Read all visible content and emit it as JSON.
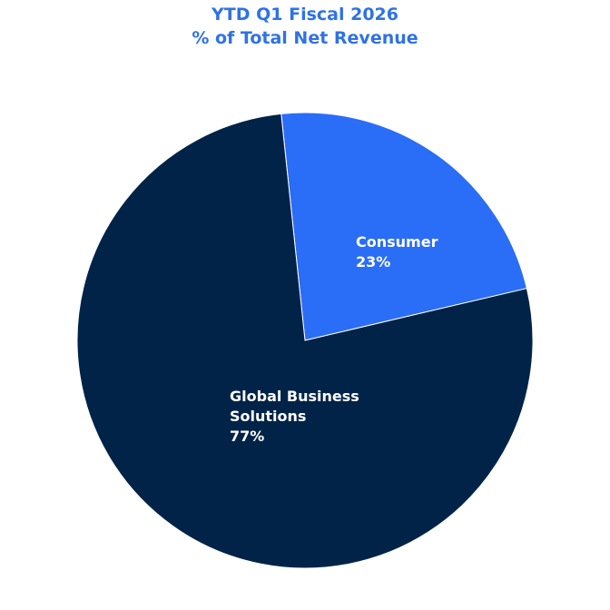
{
  "chart_data": {
    "type": "pie",
    "title": "YTD Q1 Fiscal 2026",
    "subtitle": "% of Total Net Revenue",
    "categories": [
      "Consumer",
      "Global Business Solutions"
    ],
    "values": [
      23,
      77
    ],
    "value_labels": [
      "23%",
      "77%"
    ],
    "colors": [
      "#2a6df6",
      "#012348"
    ]
  }
}
